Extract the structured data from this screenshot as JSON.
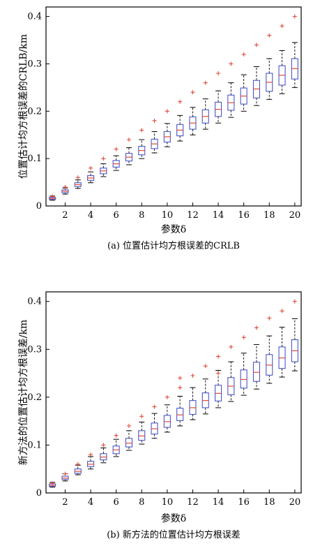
{
  "chart_data": [
    {
      "type": "box",
      "caption": "(a) 位置估计均方根误差的CRLB",
      "xlabel": "参数δ",
      "ylabel": "位置估计均方根误差的CRLB/km",
      "xlim": [
        0.5,
        20.5
      ],
      "ylim": [
        0,
        0.42
      ],
      "xticks": [
        "2",
        "4",
        "6",
        "8",
        "10",
        "12",
        "14",
        "16",
        "18",
        "20"
      ],
      "yticks": [
        "0",
        "0.1",
        "0.2",
        "0.3",
        "0.4"
      ],
      "x": [
        1,
        2,
        3,
        4,
        5,
        6,
        7,
        8,
        9,
        10,
        11,
        12,
        13,
        14,
        15,
        16,
        17,
        18,
        19,
        20
      ],
      "median": [
        0.016,
        0.031,
        0.045,
        0.059,
        0.074,
        0.089,
        0.103,
        0.117,
        0.131,
        0.146,
        0.16,
        0.175,
        0.189,
        0.204,
        0.218,
        0.232,
        0.247,
        0.261,
        0.276,
        0.29
      ],
      "q1": [
        0.014,
        0.028,
        0.041,
        0.054,
        0.068,
        0.082,
        0.095,
        0.108,
        0.121,
        0.135,
        0.148,
        0.162,
        0.175,
        0.189,
        0.202,
        0.215,
        0.228,
        0.242,
        0.255,
        0.268
      ],
      "q3": [
        0.018,
        0.034,
        0.049,
        0.064,
        0.08,
        0.096,
        0.111,
        0.126,
        0.141,
        0.157,
        0.172,
        0.188,
        0.203,
        0.219,
        0.234,
        0.249,
        0.265,
        0.28,
        0.296,
        0.311
      ],
      "whisker_low": [
        0.012,
        0.025,
        0.037,
        0.049,
        0.062,
        0.075,
        0.087,
        0.1,
        0.112,
        0.125,
        0.137,
        0.15,
        0.162,
        0.175,
        0.187,
        0.2,
        0.212,
        0.225,
        0.237,
        0.25
      ],
      "whisker_high": [
        0.021,
        0.038,
        0.055,
        0.072,
        0.089,
        0.106,
        0.123,
        0.14,
        0.157,
        0.174,
        0.191,
        0.208,
        0.226,
        0.243,
        0.26,
        0.277,
        0.294,
        0.311,
        0.328,
        0.345
      ],
      "outliers": [
        [
          1,
          0.02
        ],
        [
          2,
          0.04
        ],
        [
          3,
          0.06
        ],
        [
          4,
          0.08
        ],
        [
          5,
          0.1
        ],
        [
          6,
          0.12
        ],
        [
          7,
          0.14
        ],
        [
          8,
          0.16
        ],
        [
          9,
          0.18
        ],
        [
          10,
          0.2
        ],
        [
          11,
          0.22
        ],
        [
          12,
          0.24
        ],
        [
          13,
          0.26
        ],
        [
          14,
          0.28
        ],
        [
          15,
          0.3
        ],
        [
          16,
          0.32
        ],
        [
          17,
          0.34
        ],
        [
          18,
          0.36
        ],
        [
          19,
          0.38
        ],
        [
          20,
          0.4
        ]
      ],
      "colors": {
        "box": "#4a56c8",
        "median": "#e04a3a",
        "whisker": "#000000",
        "outlier": "#e04a3a"
      }
    },
    {
      "type": "box",
      "caption": "(b) 新方法的位置估计均方根误差",
      "xlabel": "参数δ",
      "ylabel": "新方法的位置估计均方根误差/km",
      "xlim": [
        0.5,
        20.5
      ],
      "ylim": [
        0,
        0.42
      ],
      "xticks": [
        "2",
        "4",
        "6",
        "8",
        "10",
        "12",
        "14",
        "16",
        "18",
        "20"
      ],
      "yticks": [
        "0",
        "0.1",
        "0.2",
        "0.3",
        "0.4"
      ],
      "x": [
        1,
        2,
        3,
        4,
        5,
        6,
        7,
        8,
        9,
        10,
        11,
        12,
        13,
        14,
        15,
        16,
        17,
        18,
        19,
        20
      ],
      "median": [
        0.016,
        0.031,
        0.045,
        0.06,
        0.075,
        0.09,
        0.104,
        0.119,
        0.134,
        0.149,
        0.163,
        0.178,
        0.193,
        0.208,
        0.223,
        0.237,
        0.252,
        0.267,
        0.282,
        0.297
      ],
      "q1": [
        0.014,
        0.028,
        0.041,
        0.055,
        0.069,
        0.082,
        0.096,
        0.11,
        0.123,
        0.137,
        0.151,
        0.164,
        0.178,
        0.192,
        0.205,
        0.219,
        0.233,
        0.246,
        0.26,
        0.274
      ],
      "q3": [
        0.019,
        0.035,
        0.05,
        0.066,
        0.082,
        0.098,
        0.114,
        0.13,
        0.146,
        0.162,
        0.177,
        0.193,
        0.209,
        0.225,
        0.241,
        0.257,
        0.273,
        0.289,
        0.305,
        0.32
      ],
      "whisker_low": [
        0.012,
        0.025,
        0.038,
        0.05,
        0.063,
        0.076,
        0.089,
        0.102,
        0.114,
        0.127,
        0.14,
        0.153,
        0.165,
        0.178,
        0.191,
        0.204,
        0.217,
        0.229,
        0.242,
        0.255
      ],
      "whisker_high": [
        0.022,
        0.04,
        0.058,
        0.076,
        0.094,
        0.112,
        0.13,
        0.148,
        0.166,
        0.184,
        0.202,
        0.22,
        0.238,
        0.256,
        0.274,
        0.292,
        0.31,
        0.328,
        0.346,
        0.364
      ],
      "outliers": [
        [
          1,
          0.02
        ],
        [
          2,
          0.04
        ],
        [
          3,
          0.06
        ],
        [
          4,
          0.08
        ],
        [
          5,
          0.1
        ],
        [
          6,
          0.12
        ],
        [
          7,
          0.14
        ],
        [
          8,
          0.16
        ],
        [
          9,
          0.18
        ],
        [
          10,
          0.2
        ],
        [
          11,
          0.22
        ],
        [
          11,
          0.24
        ],
        [
          12,
          0.245
        ],
        [
          13,
          0.265
        ],
        [
          14,
          0.285
        ],
        [
          14,
          0.25
        ],
        [
          15,
          0.305
        ],
        [
          16,
          0.325
        ],
        [
          17,
          0.345
        ],
        [
          18,
          0.365
        ],
        [
          19,
          0.38
        ],
        [
          20,
          0.4
        ]
      ],
      "colors": {
        "box": "#4a56c8",
        "median": "#e04a3a",
        "whisker": "#000000",
        "outlier": "#e04a3a"
      }
    }
  ]
}
